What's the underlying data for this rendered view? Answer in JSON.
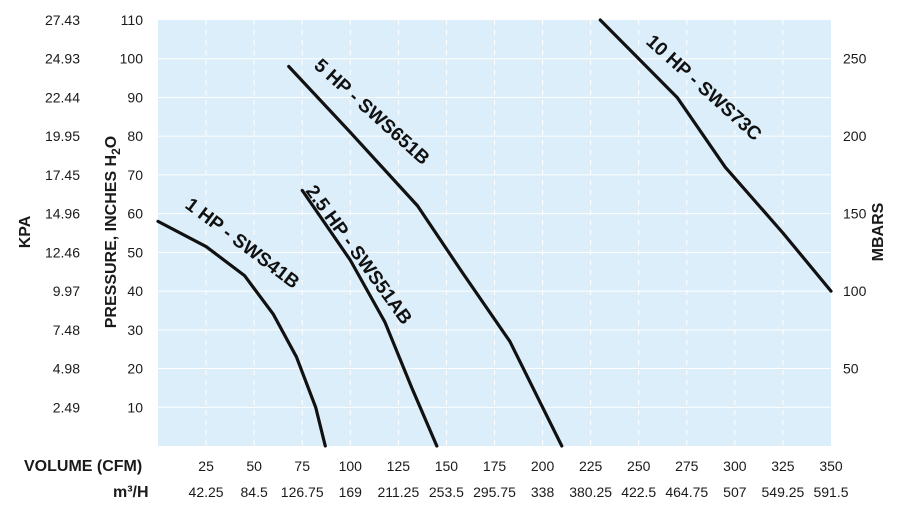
{
  "chart_data": {
    "type": "line",
    "xlabel": "VOLUME (CFM)",
    "x2label": "m³/H",
    "ylabel": "PRESSURE, INCHES H",
    "ylabel_sub": "2",
    "ylabel_tail": "O",
    "yleft_label": "KPA",
    "yright_label": "MBARS",
    "xlim": [
      0,
      350
    ],
    "ylim": [
      0,
      110
    ],
    "grid": true,
    "x_ticks": [
      25,
      50,
      75,
      100,
      125,
      150,
      175,
      200,
      225,
      250,
      275,
      300,
      325,
      350
    ],
    "x_ticks_m3h": [
      "42.25",
      "84.5",
      "126.75",
      "169",
      "211.25",
      "253.5",
      "295.75",
      "338",
      "380.25",
      "422.5",
      "464.75",
      "507",
      "549.25",
      "591.5"
    ],
    "y_ticks": [
      10,
      20,
      30,
      40,
      50,
      60,
      70,
      80,
      90,
      100,
      110
    ],
    "kpa_ticks": [
      "2.49",
      "4.98",
      "7.48",
      "9.97",
      "12.46",
      "14.96",
      "17.45",
      "19.95",
      "22.44",
      "24.93",
      "27.43"
    ],
    "mbar_ticks": [
      {
        "label": "50",
        "value": 20
      },
      {
        "label": "100",
        "value": 40
      },
      {
        "label": "150",
        "value": 60
      },
      {
        "label": "200",
        "value": 80
      },
      {
        "label": "250",
        "value": 100
      }
    ],
    "series": [
      {
        "name": "1 HP - SWS41B",
        "x": [
          0,
          25,
          45,
          60,
          72,
          82,
          87
        ],
        "y": [
          58,
          51.5,
          44,
          34,
          23,
          10,
          0
        ]
      },
      {
        "name": "2.5 HP - SWS51AB",
        "x": [
          75,
          100,
          118,
          132,
          145
        ],
        "y": [
          66,
          48,
          32,
          15,
          0
        ]
      },
      {
        "name": "5 HP - SWS651B",
        "x": [
          68,
          100,
          135,
          158,
          183,
          198,
          210
        ],
        "y": [
          98,
          81,
          62,
          45,
          27,
          12,
          0
        ]
      },
      {
        "name": "10 HP - SWS73C",
        "x": [
          230,
          270,
          295,
          325,
          350
        ],
        "y": [
          110,
          90,
          72,
          55,
          40
        ]
      }
    ]
  },
  "colors": {
    "plot_background": "#dbeef9",
    "grid": "#ffffff",
    "curve": "#111111",
    "text": "#1a1a1a"
  }
}
